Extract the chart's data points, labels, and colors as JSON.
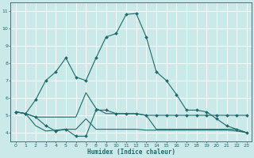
{
  "xlabel": "Humidex (Indice chaleur)",
  "bg_color": "#cce9e9",
  "grid_color": "#aacccc",
  "line_color": "#1a6b6b",
  "xlim": [
    -0.5,
    23.5
  ],
  "ylim": [
    3.5,
    11.5
  ],
  "xticks": [
    0,
    1,
    2,
    3,
    4,
    5,
    6,
    7,
    8,
    9,
    10,
    11,
    12,
    13,
    14,
    15,
    16,
    17,
    18,
    19,
    20,
    21,
    22,
    23
  ],
  "yticks": [
    4,
    5,
    6,
    7,
    8,
    9,
    10,
    11
  ],
  "line1_x": [
    0,
    1,
    2,
    3,
    4,
    5,
    6,
    7,
    8,
    9,
    10,
    11,
    12,
    13,
    14,
    15,
    16,
    17,
    18,
    19,
    20,
    21,
    22,
    23
  ],
  "line1_y": [
    5.2,
    5.1,
    5.9,
    7.0,
    7.5,
    8.3,
    7.2,
    7.0,
    8.3,
    9.5,
    9.7,
    10.8,
    10.85,
    9.5,
    7.5,
    7.0,
    6.2,
    5.3,
    5.3,
    5.2,
    4.8,
    4.4,
    4.2,
    4.0
  ],
  "line2_x": [
    0,
    1,
    2,
    3,
    4,
    5,
    6,
    7,
    8,
    9,
    10,
    11,
    12,
    13,
    14,
    15,
    16,
    17,
    18,
    19,
    20,
    21,
    22,
    23
  ],
  "line2_y": [
    5.2,
    5.1,
    4.9,
    4.4,
    4.1,
    4.2,
    3.8,
    3.8,
    5.3,
    5.3,
    5.1,
    5.1,
    5.1,
    5.0,
    5.0,
    5.0,
    5.0,
    5.0,
    5.0,
    5.0,
    5.0,
    5.0,
    5.0,
    5.0
  ],
  "line3_x": [
    0,
    1,
    2,
    3,
    4,
    5,
    6,
    7,
    8,
    9,
    10,
    11,
    12,
    13,
    14,
    15,
    16,
    17,
    18,
    19,
    20,
    21,
    22,
    23
  ],
  "line3_y": [
    5.2,
    5.1,
    4.4,
    4.1,
    4.15,
    4.2,
    4.2,
    4.8,
    4.2,
    4.2,
    4.2,
    4.2,
    4.2,
    4.15,
    4.15,
    4.15,
    4.15,
    4.15,
    4.15,
    4.15,
    4.15,
    4.15,
    4.1,
    4.0
  ],
  "line4_x": [
    0,
    1,
    2,
    3,
    4,
    5,
    6,
    7,
    8,
    9,
    10,
    11,
    12,
    13,
    14,
    15,
    16,
    17,
    18,
    19,
    20,
    21,
    22,
    23
  ],
  "line4_y": [
    5.2,
    5.1,
    4.9,
    4.9,
    4.9,
    4.9,
    4.9,
    6.3,
    5.4,
    5.1,
    5.1,
    5.1,
    5.1,
    5.0,
    4.2,
    4.2,
    4.2,
    4.2,
    4.2,
    4.2,
    4.2,
    4.2,
    4.2,
    4.0
  ]
}
